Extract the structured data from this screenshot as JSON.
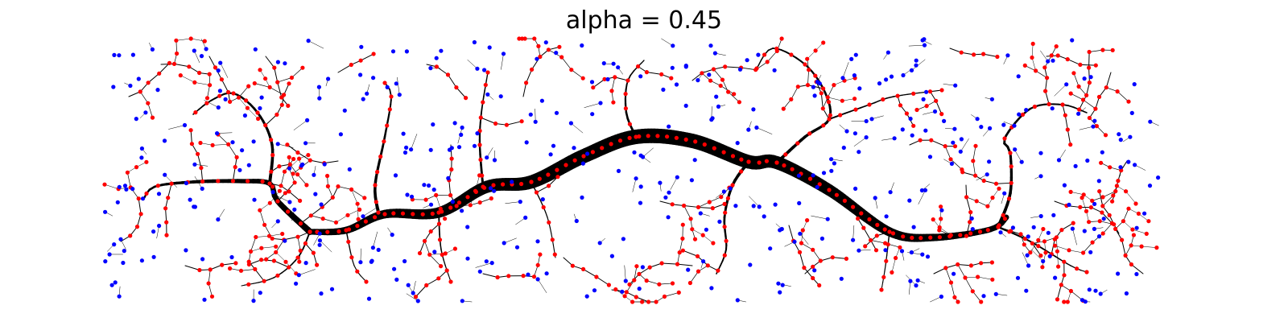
{
  "title": "alpha = 0.45",
  "colors": {
    "edge": "#000000",
    "red_node": "#ff0000",
    "blue_node": "#0000ff",
    "background": "#ffffff"
  },
  "generator": {
    "blue_nodes": 430,
    "branch_seed": 7
  }
}
